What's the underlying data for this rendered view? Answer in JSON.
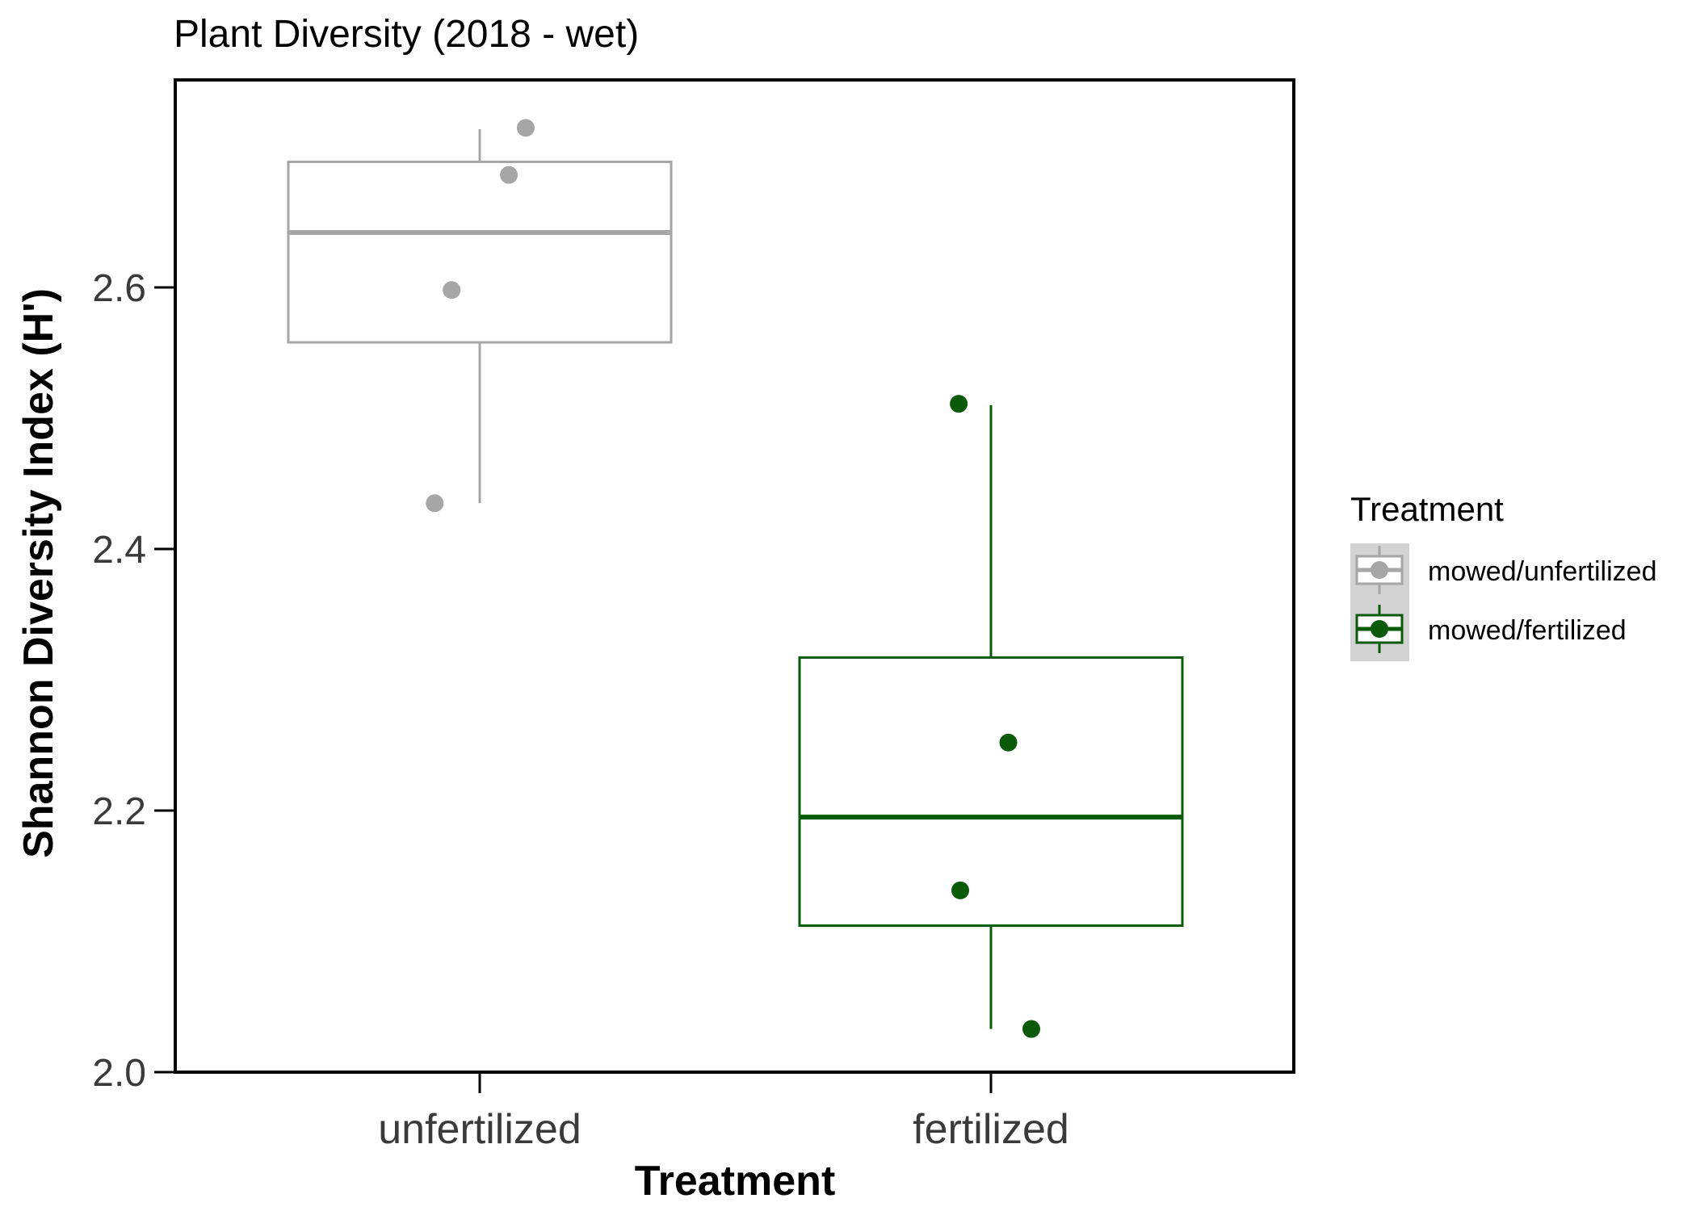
{
  "chart_data": {
    "type": "boxplot",
    "title": "Plant Diversity (2018 - wet)",
    "xlabel": "Treatment",
    "ylabel": "Shannon Diversity Index (H')",
    "categories": [
      "unfertilized",
      "fertilized"
    ],
    "ylim": [
      2.0,
      2.76
    ],
    "yticks": [
      2.0,
      2.2,
      2.4,
      2.6
    ],
    "grid": false,
    "legend": {
      "title": "Treatment",
      "position": "right",
      "entries": [
        "mowed/unfertilized",
        "mowed/fertilized"
      ]
    },
    "series": [
      {
        "name": "mowed/unfertilized",
        "category": "unfertilized",
        "color": "#a6a6a6",
        "box": {
          "min": 2.435,
          "q1": 2.558,
          "median": 2.642,
          "q3": 2.696,
          "max": 2.721
        },
        "points": [
          {
            "x": -0.088,
            "y": 2.435
          },
          {
            "x": -0.055,
            "y": 2.598
          },
          {
            "x": 0.057,
            "y": 2.686
          },
          {
            "x": 0.09,
            "y": 2.722
          }
        ]
      },
      {
        "name": "mowed/fertilized",
        "category": "fertilized",
        "color": "#0a5a0a",
        "box": {
          "min": 2.033,
          "q1": 2.112,
          "median": 2.195,
          "q3": 2.317,
          "max": 2.51
        },
        "points": [
          {
            "x": -0.06,
            "y": 2.139
          },
          {
            "x": 0.034,
            "y": 2.252
          },
          {
            "x": -0.063,
            "y": 2.511
          },
          {
            "x": 0.079,
            "y": 2.033
          }
        ]
      }
    ]
  }
}
